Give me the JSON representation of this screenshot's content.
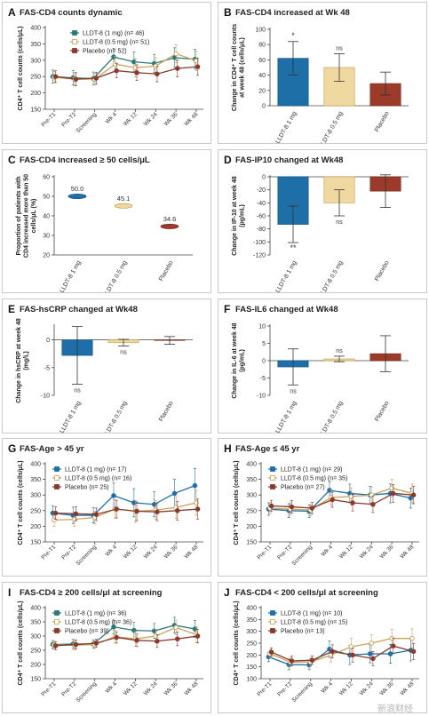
{
  "colors": {
    "blue": "#1e6fa8",
    "yellow": "#f0d9a0",
    "red": "#9c3b2a",
    "yellowEdge": "#c9a45a",
    "grey": "#595959",
    "teal": "#2a7a78"
  },
  "watermark": "新浪财经",
  "chart_data": [
    {
      "id": "A",
      "type": "line",
      "letter": "A",
      "title": "FAS-CD4 counts dynamic",
      "ylabel": "CD4⁺ T cell counts (cells/μL)",
      "categories": [
        "Pre-T1",
        "Pre-T2",
        "Screening",
        "Wk 4",
        "Wk 12",
        "Wk 24",
        "Wk 36",
        "Wk 48"
      ],
      "ylim": [
        150,
        400
      ],
      "yticks": [
        150,
        200,
        250,
        300,
        350,
        400
      ],
      "legend_position": "top-right",
      "series": [
        {
          "name": "LLDT-8 (1 mg) (n= 46)",
          "color": "#2a7a78",
          "marker": "filled",
          "values": [
            250,
            246,
            244,
            310,
            295,
            290,
            308,
            303
          ],
          "err": [
            20,
            22,
            20,
            26,
            30,
            28,
            30,
            30
          ]
        },
        {
          "name": "LLDT-8 (0.5 mg) (n= 51)",
          "color": "#c9a45a",
          "marker": "open",
          "values": [
            248,
            242,
            242,
            288,
            277,
            282,
            320,
            298
          ],
          "err": [
            18,
            20,
            18,
            24,
            28,
            26,
            28,
            30
          ]
        },
        {
          "name": "Placebo (n= 52)",
          "color": "#8a3a2c",
          "marker": "filled",
          "values": [
            250,
            242,
            245,
            268,
            262,
            258,
            275,
            280
          ],
          "err": [
            18,
            20,
            18,
            22,
            24,
            24,
            26,
            26
          ]
        }
      ]
    },
    {
      "id": "B",
      "type": "bar",
      "letter": "B",
      "title": "FAS-CD4 increased at Wk 48",
      "ylabel": "Change in CD4⁺ T cell counts at week 48 (cells/μL)",
      "categories": [
        "LLDT-8 1 mg",
        "LLDT-8 0.5 mg",
        "Placebo"
      ],
      "values": [
        62,
        50,
        29
      ],
      "err": [
        22,
        18,
        15
      ],
      "annotations": [
        "*",
        "ns",
        ""
      ],
      "ylim": [
        0,
        100
      ],
      "yticks": [
        0,
        20,
        40,
        60,
        80,
        100
      ]
    },
    {
      "id": "C",
      "type": "scatter",
      "letter": "C",
      "title": "FAS-CD4 increased ≥ 50 cells/μL",
      "ylabel": "Proportion of patients with CD4 increased more than 50 cells/μL (%)",
      "categories": [
        "LLDT-8 1 mg",
        "LLDT-8 0.5 mg",
        "Placebo"
      ],
      "values": [
        50.0,
        45.1,
        34.6
      ],
      "labels": [
        "50.0",
        "45.1",
        "34.6"
      ],
      "ylim": [
        20,
        60
      ],
      "yticks": [
        20,
        30,
        40,
        50,
        60
      ]
    },
    {
      "id": "D",
      "type": "bar",
      "letter": "D",
      "title": "FAS-IP10 changed at Wk48",
      "ylabel": "Change in IP-10 at week 48 (pg/mL)",
      "categories": [
        "LLDT-8 1 mg",
        "LLDT-8 0.5 mg",
        "Placebo"
      ],
      "values": [
        -73,
        -40,
        -22
      ],
      "err": [
        28,
        20,
        25
      ],
      "annotations": [
        "**",
        "ns",
        ""
      ],
      "ylim": [
        -120,
        0
      ],
      "yticks": [
        0,
        -20,
        -40,
        -60,
        -80,
        -100,
        -120
      ]
    },
    {
      "id": "E",
      "type": "bar",
      "letter": "E",
      "title": "FAS-hsCRP changed at Wk48",
      "ylabel": "Change in hsCRP at week 48 (mg/L)",
      "categories": [
        "LLDT-8 1 mg",
        "LLDT-8 0.5 mg",
        "Placebo"
      ],
      "values": [
        -2.8,
        -0.5,
        -0.1
      ],
      "err": [
        5.2,
        0.6,
        0.7
      ],
      "annotations": [
        "ns",
        "ns",
        ""
      ],
      "ylim": [
        -10,
        2.5
      ],
      "yticks": [
        0,
        -5,
        -10
      ]
    },
    {
      "id": "F",
      "type": "bar",
      "letter": "F",
      "title": "FAS-IL6 changed at Wk48",
      "ylabel": "Change in IL-6 at week 48 (pg/mL)",
      "categories": [
        "LLDT-8 1 mg",
        "LLDT-8 0.5 mg",
        "Placebo"
      ],
      "values": [
        -1.8,
        0.5,
        2.0
      ],
      "err": [
        5.2,
        0.8,
        5.2
      ],
      "annotations": [
        "ns",
        "ns",
        ""
      ],
      "ylim": [
        -10,
        10
      ],
      "yticks": [
        10,
        5,
        0,
        -5,
        -10
      ]
    },
    {
      "id": "G",
      "type": "line",
      "letter": "G",
      "title": "FAS-Age > 45 yr",
      "ylabel": "CD4⁺ T cell counts (cells/μL)",
      "categories": [
        "Pre-T1",
        "Pre-T2",
        "Screening",
        "Wk 4",
        "Wk 12",
        "Wk 24",
        "Wk 36",
        "Wk 48"
      ],
      "ylim": [
        150,
        400
      ],
      "yticks": [
        150,
        200,
        250,
        300,
        350,
        400
      ],
      "legend_position": "top-left",
      "series": [
        {
          "name": "LLDT-8 (1 mg) (n= 17)",
          "color": "#1e6fa8",
          "marker": "filled",
          "values": [
            242,
            235,
            235,
            298,
            275,
            270,
            305,
            330
          ],
          "err": [
            24,
            26,
            24,
            40,
            45,
            40,
            45,
            55
          ]
        },
        {
          "name": "LLDT-8 (0.5 mg) (n= 16)",
          "color": "#c9a45a",
          "marker": "open",
          "values": [
            220,
            222,
            228,
            255,
            248,
            252,
            260,
            275
          ],
          "err": [
            20,
            22,
            20,
            30,
            35,
            30,
            35,
            40
          ]
        },
        {
          "name": "Placebo (n= 25)",
          "color": "#8a3a2c",
          "marker": "filled",
          "values": [
            242,
            240,
            238,
            255,
            248,
            246,
            250,
            255
          ],
          "err": [
            20,
            22,
            20,
            28,
            30,
            28,
            30,
            32
          ]
        }
      ]
    },
    {
      "id": "H",
      "type": "line",
      "letter": "H",
      "title": "FAS-Age ≤ 45 yr",
      "ylabel": "CD4⁺ T cell counts (cells/μL)",
      "categories": [
        "Pre-T1",
        "Pre-T2",
        "Screening",
        "Wk 4",
        "Wk 12",
        "Wk 24",
        "Wk 36",
        "Wk 48"
      ],
      "ylim": [
        150,
        400
      ],
      "yticks": [
        150,
        200,
        250,
        300,
        350,
        400
      ],
      "legend_position": "top-left",
      "series": [
        {
          "name": "LLDT-8 (1 mg) (n= 29)",
          "color": "#1e6fa8",
          "marker": "filled",
          "values": [
            255,
            250,
            248,
            315,
            305,
            300,
            305,
            290
          ],
          "err": [
            20,
            22,
            20,
            28,
            30,
            28,
            30,
            32
          ]
        },
        {
          "name": "LLDT-8 (0.5 mg) (n= 35)",
          "color": "#c9a45a",
          "marker": "open",
          "values": [
            258,
            255,
            252,
            292,
            295,
            300,
            322,
            305
          ],
          "err": [
            18,
            20,
            18,
            24,
            28,
            26,
            28,
            30
          ]
        },
        {
          "name": "Placebo (n= 27)",
          "color": "#8a3a2c",
          "marker": "filled",
          "values": [
            265,
            262,
            258,
            285,
            275,
            270,
            305,
            300
          ],
          "err": [
            18,
            20,
            18,
            24,
            26,
            26,
            28,
            28
          ]
        }
      ]
    },
    {
      "id": "I",
      "type": "line",
      "letter": "I",
      "title": "FAS-CD4 ≥ 200 cells/μl at screening",
      "ylabel": "CD4⁺ T cell counts (cells/μL)",
      "categories": [
        "Pre-T1",
        "Pre-T2",
        "Screening",
        "Wk 4",
        "Wk 12",
        "Wk 24",
        "Wk 36",
        "Wk 48"
      ],
      "ylim": [
        150,
        400
      ],
      "yticks": [
        150,
        200,
        250,
        300,
        350,
        400
      ],
      "legend_position": "top-left",
      "series": [
        {
          "name": "LLDT-8 (1 mg) (n= 36)",
          "color": "#2a7a78",
          "marker": "filled",
          "values": [
            270,
            272,
            272,
            332,
            320,
            318,
            338,
            325
          ],
          "err": [
            14,
            16,
            14,
            24,
            28,
            26,
            28,
            30
          ]
        },
        {
          "name": "LLDT-8 (0.5 mg) (n= 36)",
          "color": "#c9a45a",
          "marker": "open",
          "values": [
            268,
            268,
            270,
            298,
            290,
            300,
            330,
            305
          ],
          "err": [
            14,
            16,
            14,
            22,
            26,
            24,
            26,
            28
          ]
        },
        {
          "name": "Placebo (n= 39)",
          "color": "#8a3a2c",
          "marker": "filled",
          "values": [
            266,
            270,
            275,
            295,
            285,
            282,
            290,
            300
          ],
          "err": [
            14,
            16,
            14,
            20,
            22,
            22,
            24,
            24
          ]
        }
      ]
    },
    {
      "id": "J",
      "type": "line",
      "letter": "J",
      "title": "FAS-CD4 < 200 cells/μl at screening",
      "ylabel": "CD4⁺ T cell counts (cells/μL)",
      "categories": [
        "Pre-T1",
        "Pre-T2",
        "Screening",
        "Wk 4",
        "Wk 12",
        "Wk 24",
        "Wk 36",
        "Wk 48"
      ],
      "ylim": [
        100,
        400
      ],
      "yticks": [
        100,
        150,
        200,
        250,
        300,
        350,
        400
      ],
      "legend_position": "top-left",
      "series": [
        {
          "name": "LLDT-8 (1 mg) (n= 10)",
          "color": "#1e6fa8",
          "marker": "filled",
          "values": [
            192,
            160,
            158,
            225,
            200,
            205,
            205,
            220
          ],
          "err": [
            20,
            22,
            20,
            35,
            40,
            38,
            40,
            45
          ]
        },
        {
          "name": "LLDT-8 (0.5 mg) (n= 15)",
          "color": "#c9a45a",
          "marker": "open",
          "values": [
            205,
            170,
            170,
            200,
            235,
            250,
            270,
            270
          ],
          "err": [
            18,
            20,
            18,
            30,
            35,
            35,
            38,
            40
          ]
        },
        {
          "name": "Placebo (n= 13)",
          "color": "#8a3a2c",
          "marker": "filled",
          "values": [
            212,
            175,
            178,
            215,
            200,
            185,
            238,
            215
          ],
          "err": [
            18,
            20,
            18,
            28,
            30,
            30,
            32,
            34
          ]
        }
      ]
    }
  ]
}
